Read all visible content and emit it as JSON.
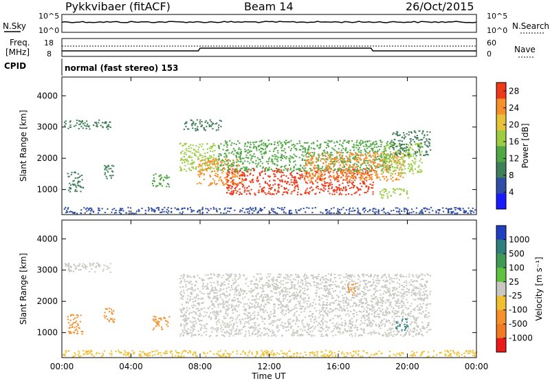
{
  "header": {
    "station": "Pykkvibaer (fitACF)",
    "beam": "Beam 14",
    "date": "26/Oct/2015"
  },
  "nsky": {
    "left_label": "N.Sky",
    "left_top": "10^5",
    "left_bottom": "10^0",
    "right_top": "10^5",
    "right_bottom": "10^0",
    "right_label": "N.Search"
  },
  "freq": {
    "label_1": "Freq.",
    "label_2": "[MHz]",
    "left_top": "18",
    "left_bottom": "8",
    "right_top": "60",
    "right_bottom": "0",
    "right_label": "Nave"
  },
  "cpid": {
    "label": "CPID",
    "text": "normal (fast stereo) 153"
  },
  "chart_data": [
    {
      "type": "heatmap",
      "panel": "power",
      "ylabel": "Slant Range [km]",
      "xlabel": "Time UT",
      "x_ticks": [
        "00:00",
        "04:00",
        "08:00",
        "12:00",
        "16:00",
        "20:00",
        "00:00"
      ],
      "y_ticks": [
        "1000",
        "2000",
        "3000",
        "4000"
      ],
      "ylim": [
        200,
        4600
      ],
      "xlim_hours": [
        0,
        24
      ],
      "colorbar": {
        "label": "Power [dB]",
        "ticks": [
          "4",
          "8",
          "12",
          "16",
          "20",
          "24",
          "28"
        ],
        "range": [
          0,
          30
        ],
        "colors": [
          "#1a1aff",
          "#2f4ea8",
          "#3f7f5a",
          "#4fa844",
          "#9ccc44",
          "#e6c23a",
          "#f5902a",
          "#ef3a1a"
        ]
      },
      "regions": [
        {
          "t": [
            0.1,
            2.8
          ],
          "r": [
            2950,
            3250
          ],
          "level": 8
        },
        {
          "t": [
            0.3,
            1.2
          ],
          "r": [
            950,
            1600
          ],
          "level": 8
        },
        {
          "t": [
            2.4,
            3.0
          ],
          "r": [
            1300,
            1800
          ],
          "level": 10
        },
        {
          "t": [
            5.2,
            6.2
          ],
          "r": [
            1100,
            1550
          ],
          "level": 14
        },
        {
          "t": [
            6.8,
            9.0
          ],
          "r": [
            1600,
            2500
          ],
          "level": 16
        },
        {
          "t": [
            7.8,
            10.5
          ],
          "r": [
            1150,
            2000
          ],
          "level": 26
        },
        {
          "t": [
            9.5,
            18.0
          ],
          "r": [
            850,
            1700
          ],
          "level": 28
        },
        {
          "t": [
            9.0,
            19.0
          ],
          "r": [
            1600,
            2600
          ],
          "level": 14
        },
        {
          "t": [
            14.0,
            19.8
          ],
          "r": [
            1300,
            2200
          ],
          "level": 24
        },
        {
          "t": [
            18.5,
            20.8
          ],
          "r": [
            1500,
            2500
          ],
          "level": 18
        },
        {
          "t": [
            19.0,
            21.3
          ],
          "r": [
            2100,
            2900
          ],
          "level": 8
        },
        {
          "t": [
            18.3,
            20.0
          ],
          "r": [
            750,
            1050
          ],
          "level": 18
        },
        {
          "t": [
            7.0,
            9.2
          ],
          "r": [
            2900,
            3250
          ],
          "level": 8
        },
        {
          "t": [
            0.0,
            24.0
          ],
          "r": [
            250,
            450
          ],
          "level": 6
        }
      ]
    },
    {
      "type": "heatmap",
      "panel": "velocity",
      "ylabel": "Slant Range [km]",
      "xlabel": "Time UT",
      "x_ticks": [
        "00:00",
        "04:00",
        "08:00",
        "12:00",
        "16:00",
        "20:00",
        "00:00"
      ],
      "y_ticks": [
        "1000",
        "2000",
        "3000",
        "4000"
      ],
      "ylim": [
        200,
        4600
      ],
      "xlim_hours": [
        0,
        24
      ],
      "colorbar": {
        "label": "Velocity [m s⁻¹]",
        "ticks": [
          "1000",
          "500",
          "100",
          "25",
          "-25",
          "-100",
          "-500",
          "-1000"
        ],
        "colors": [
          "#1f3fbf",
          "#2f7f7f",
          "#3f9a55",
          "#5fc23f",
          "#c8c8c0",
          "#f0c030",
          "#f5902a",
          "#ef7a20",
          "#e81a1a"
        ]
      },
      "regions": [
        {
          "t": [
            0.1,
            2.8
          ],
          "r": [
            2950,
            3250
          ],
          "v": 0
        },
        {
          "t": [
            0.3,
            1.2
          ],
          "r": [
            950,
            1600
          ],
          "v": -150
        },
        {
          "t": [
            2.4,
            3.0
          ],
          "r": [
            1300,
            1800
          ],
          "v": -300
        },
        {
          "t": [
            5.2,
            6.2
          ],
          "r": [
            1100,
            1550
          ],
          "v": -200
        },
        {
          "t": [
            6.8,
            21.3
          ],
          "r": [
            900,
            2900
          ],
          "v": 0
        },
        {
          "t": [
            19.3,
            20.0
          ],
          "r": [
            1100,
            1500
          ],
          "v": 400
        },
        {
          "t": [
            16.5,
            17.0
          ],
          "r": [
            2200,
            2600
          ],
          "v": -250
        },
        {
          "t": [
            0.0,
            24.0
          ],
          "r": [
            250,
            450
          ],
          "v": -50
        }
      ]
    }
  ],
  "xaxis_title": "Time UT"
}
